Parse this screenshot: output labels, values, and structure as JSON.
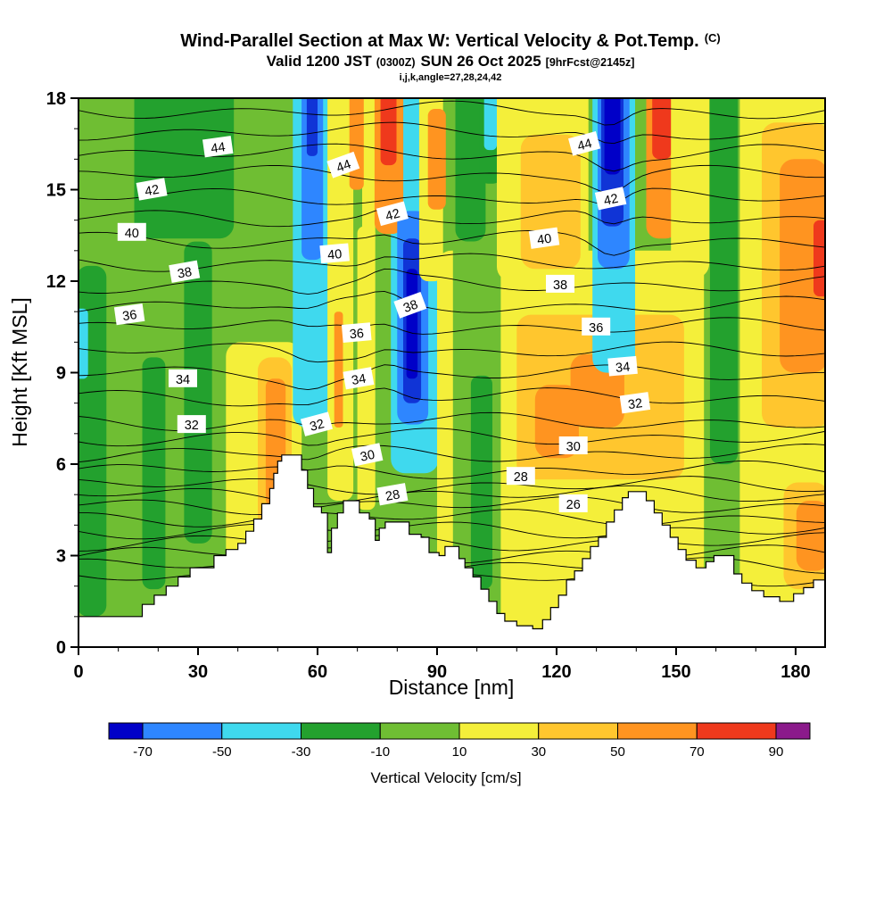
{
  "chart_data": {
    "type": "heatmap",
    "title_main": "Wind-Parallel Section at Max W: Vertical Velocity & Pot.Temp.",
    "title_suffix": "(C)",
    "valid_main1": "Valid 1200 JST",
    "valid_small1": "(0300Z)",
    "valid_main2": "SUN 26 Oct 2025",
    "valid_small2": "[9hrFcst@2145z]",
    "params_line": "i,j,k,angle=27,28,24,42",
    "xlabel": "Distance [nm]",
    "ylabel": "Height [Kft MSL]",
    "xlim": [
      0,
      187.4
    ],
    "ylim": [
      0,
      18
    ],
    "x_ticks": [
      0,
      30,
      60,
      90,
      120,
      150,
      180
    ],
    "y_ticks": [
      0,
      3,
      6,
      9,
      12,
      15,
      18
    ],
    "x_minor_step": 10,
    "y_minor_step": 1,
    "fill_variable": "Vertical Velocity [cm/s]",
    "line_variable": "Potential Temperature (C)",
    "colorbar": {
      "label": "Vertical Velocity [cm/s]",
      "label_color": "#00008b",
      "tick_labels": [
        -70,
        -50,
        -30,
        -10,
        10,
        30,
        50,
        70,
        90
      ],
      "colors": [
        "#0000c8",
        "#2e86ff",
        "#3fd9ee",
        "#23a12e",
        "#6fbe33",
        "#f4ef3a",
        "#ffc62e",
        "#ff9420",
        "#ef391c",
        "#8b1a8b"
      ]
    },
    "palette": {
      "g": "#6fbe33",
      "dg": "#23a12e",
      "y": "#f4ef3a",
      "gd": "#ffc62e",
      "o": "#ff9420",
      "r": "#ef391c",
      "c": "#3fd9ee",
      "lb": "#2e86ff",
      "db": "#1034d6",
      "nb": "#0000c8",
      "pu": "#8b1a8b"
    },
    "background": "g",
    "fill_regions": [
      [
        "dg",
        0.5,
        1.0,
        6.5,
        11.5
      ],
      [
        "dg",
        14,
        13.4,
        25,
        4.6
      ],
      [
        "dg",
        26.5,
        3.4,
        7,
        9.9
      ],
      [
        "dg",
        16,
        1.9,
        5.8,
        7.6
      ],
      [
        "y",
        37,
        2.5,
        19,
        7.5
      ],
      [
        "gd",
        45,
        3.7,
        8.5,
        5.8
      ],
      [
        "o",
        47,
        4.6,
        5,
        4.2
      ],
      [
        "c",
        53.8,
        7.2,
        10.2,
        10.8
      ],
      [
        "lb",
        56,
        12.7,
        5.4,
        5.3
      ],
      [
        "db",
        57.3,
        16.1,
        2.7,
        1.9
      ],
      [
        "y",
        62.5,
        4.8,
        6.5,
        13.2
      ],
      [
        "o",
        64.2,
        7.2,
        2.2,
        3.8
      ],
      [
        "y",
        70,
        4.5,
        4.5,
        9.3
      ],
      [
        "y",
        71.2,
        13.3,
        3.3,
        4.7
      ],
      [
        "o",
        68,
        15,
        3.6,
        3
      ],
      [
        "c",
        78.4,
        5.7,
        12,
        12.3
      ],
      [
        "o",
        74.3,
        13.55,
        7.2,
        4.45
      ],
      [
        "r",
        75.8,
        15.8,
        4,
        2.2
      ],
      [
        "lb",
        80,
        7.3,
        7.8,
        7.0
      ],
      [
        "db",
        81.5,
        8,
        4.5,
        5.4
      ],
      [
        "nb",
        82.3,
        8.8,
        2.8,
        3.6
      ],
      [
        "y",
        90,
        0.5,
        67,
        12.5
      ],
      [
        "y",
        85.5,
        12,
        6,
        6
      ],
      [
        "o",
        87.7,
        14.35,
        4.5,
        3.3
      ],
      [
        "g",
        94,
        0.5,
        12,
        17.5
      ],
      [
        "dg",
        94.6,
        13.3,
        7.6,
        4.7
      ],
      [
        "dg",
        98.5,
        1.9,
        5.4,
        7.0
      ],
      [
        "dg",
        100.6,
        15.2,
        5.6,
        2.8
      ],
      [
        "c",
        101.8,
        16.3,
        3.2,
        1.7
      ],
      [
        "y",
        105,
        12,
        23,
        6.2
      ],
      [
        "gd",
        111,
        12.4,
        15,
        4.4
      ],
      [
        "gd",
        110,
        5.5,
        42,
        5.4
      ],
      [
        "o",
        123.5,
        7.2,
        13.5,
        2.4
      ],
      [
        "o",
        114.6,
        6.2,
        11,
        2.4
      ],
      [
        "c",
        129,
        9,
        10.7,
        9
      ],
      [
        "lb",
        130.3,
        12.4,
        8,
        5.6
      ],
      [
        "db",
        131.2,
        13.8,
        5.6,
        4.2
      ],
      [
        "nb",
        132,
        15.5,
        4,
        2.5
      ],
      [
        "o",
        142.5,
        13.4,
        8,
        4.6
      ],
      [
        "r",
        144,
        16,
        4.8,
        2
      ],
      [
        "y",
        148.7,
        12.1,
        9.6,
        5.9
      ],
      [
        "dg",
        158.5,
        6,
        7,
        12
      ],
      [
        "y",
        166,
        0.7,
        21.5,
        17.3
      ],
      [
        "gd",
        171.5,
        7.2,
        16,
        10
      ],
      [
        "o",
        176,
        9,
        11,
        7
      ],
      [
        "r",
        184.5,
        11.5,
        3,
        2.5
      ],
      [
        "gd",
        177,
        1.9,
        10.5,
        3.5
      ],
      [
        "o",
        180.2,
        2.5,
        7.2,
        2.3
      ],
      [
        "c",
        0,
        8.8,
        2.4,
        2.3
      ]
    ],
    "isolines": [
      [
        46,
        17.6
      ],
      [
        45,
        16.9
      ],
      [
        44,
        16.2
      ],
      [
        43,
        15.5
      ],
      [
        42,
        14.75
      ],
      [
        41,
        14.05
      ],
      [
        40,
        13.35
      ],
      [
        39,
        12.6
      ],
      [
        38,
        11.9
      ],
      [
        37,
        11.2
      ],
      [
        36,
        10.5
      ],
      [
        35,
        9.7
      ],
      [
        34,
        8.95
      ],
      [
        33,
        8.2
      ],
      [
        32,
        7.4
      ],
      [
        31,
        6.9
      ],
      [
        30,
        6.35
      ],
      [
        29,
        5.8
      ],
      [
        28,
        5.3
      ],
      [
        27,
        5.0
      ],
      [
        26,
        4.65
      ],
      [
        25,
        4.25
      ],
      [
        24,
        3.85
      ],
      [
        23,
        3.45
      ],
      [
        22,
        3.05
      ],
      [
        21,
        2.65
      ],
      [
        20,
        2.25
      ]
    ],
    "isolabels": [
      [
        44,
        35,
        16.4,
        -8
      ],
      [
        44,
        66.5,
        15.8,
        -20
      ],
      [
        44,
        127,
        16.5,
        -15
      ],
      [
        42,
        18.4,
        15.0,
        -10
      ],
      [
        42,
        78.8,
        14.2,
        -15
      ],
      [
        42,
        133.6,
        14.7,
        -12
      ],
      [
        40,
        13.4,
        13.6,
        0
      ],
      [
        40,
        64.3,
        12.9,
        -5
      ],
      [
        40,
        116.9,
        13.4,
        -8
      ],
      [
        38,
        26.6,
        12.3,
        -10
      ],
      [
        38,
        83.3,
        11.2,
        -20
      ],
      [
        38,
        120.9,
        11.9,
        0
      ],
      [
        36,
        12.8,
        10.9,
        -8
      ],
      [
        36,
        69.8,
        10.3,
        -5
      ],
      [
        36,
        129.9,
        10.5,
        0
      ],
      [
        34,
        26.2,
        8.8,
        0
      ],
      [
        34,
        70.3,
        8.8,
        -10
      ],
      [
        34,
        136.6,
        9.2,
        -5
      ],
      [
        32,
        28.4,
        7.3,
        0
      ],
      [
        32,
        59.8,
        7.3,
        -15
      ],
      [
        32,
        139.7,
        8.0,
        -8
      ],
      [
        30,
        72.5,
        6.3,
        -12
      ],
      [
        30,
        124.2,
        6.6,
        0
      ],
      [
        28,
        78.8,
        5.0,
        -10
      ],
      [
        28,
        111,
        5.6,
        0
      ],
      [
        26,
        124.2,
        4.7,
        0
      ]
    ],
    "terrain": [
      [
        0,
        1.0
      ],
      [
        14,
        1.0
      ],
      [
        16,
        1.4
      ],
      [
        19,
        1.7
      ],
      [
        22,
        2.0
      ],
      [
        25,
        2.3
      ],
      [
        28,
        2.6
      ],
      [
        32,
        2.6
      ],
      [
        34,
        3.0
      ],
      [
        37,
        3.2
      ],
      [
        40,
        3.4
      ],
      [
        42,
        3.8
      ],
      [
        44,
        4.2
      ],
      [
        46,
        4.7
      ],
      [
        48,
        5.2
      ],
      [
        49,
        5.7
      ],
      [
        50,
        6.1
      ],
      [
        51,
        6.3
      ],
      [
        55,
        6.3
      ],
      [
        56,
        5.8
      ],
      [
        57.5,
        5.2
      ],
      [
        59,
        4.6
      ],
      [
        61,
        4.4
      ],
      [
        62.5,
        3.1
      ],
      [
        63.5,
        3.9
      ],
      [
        65,
        4.4
      ],
      [
        66.5,
        4.8
      ],
      [
        69,
        4.8
      ],
      [
        70.5,
        4.4
      ],
      [
        73,
        4.2
      ],
      [
        74.5,
        3.5
      ],
      [
        75.5,
        3.9
      ],
      [
        77,
        4.1
      ],
      [
        81,
        4.1
      ],
      [
        83,
        3.7
      ],
      [
        86,
        3.6
      ],
      [
        88,
        3.1
      ],
      [
        90.5,
        3.0
      ],
      [
        92,
        3.3
      ],
      [
        94.5,
        3.3
      ],
      [
        95.5,
        2.9
      ],
      [
        97,
        2.6
      ],
      [
        99,
        2.3
      ],
      [
        101,
        1.9
      ],
      [
        103,
        1.5
      ],
      [
        105,
        1.1
      ],
      [
        107,
        0.85
      ],
      [
        110,
        0.7
      ],
      [
        114,
        0.6
      ],
      [
        116.5,
        0.9
      ],
      [
        118.5,
        1.3
      ],
      [
        120.5,
        1.7
      ],
      [
        122.5,
        2.2
      ],
      [
        124.5,
        2.5
      ],
      [
        126.5,
        2.9
      ],
      [
        128.5,
        3.3
      ],
      [
        130.5,
        3.6
      ],
      [
        132.5,
        4.1
      ],
      [
        134.5,
        4.5
      ],
      [
        136.5,
        4.9
      ],
      [
        138,
        5.1
      ],
      [
        141,
        5.1
      ],
      [
        142.5,
        4.8
      ],
      [
        144.5,
        4.4
      ],
      [
        146.5,
        4.0
      ],
      [
        148.5,
        3.6
      ],
      [
        150.5,
        3.2
      ],
      [
        152.5,
        2.85
      ],
      [
        155,
        2.6
      ],
      [
        157.5,
        2.8
      ],
      [
        159.5,
        3.0
      ],
      [
        162.5,
        3.0
      ],
      [
        164.5,
        2.4
      ],
      [
        166.5,
        2.1
      ],
      [
        169,
        1.85
      ],
      [
        172,
        1.65
      ],
      [
        176,
        1.5
      ],
      [
        179.5,
        1.75
      ],
      [
        182,
        1.95
      ],
      [
        184.5,
        2.2
      ],
      [
        187.4,
        2.3
      ]
    ]
  }
}
